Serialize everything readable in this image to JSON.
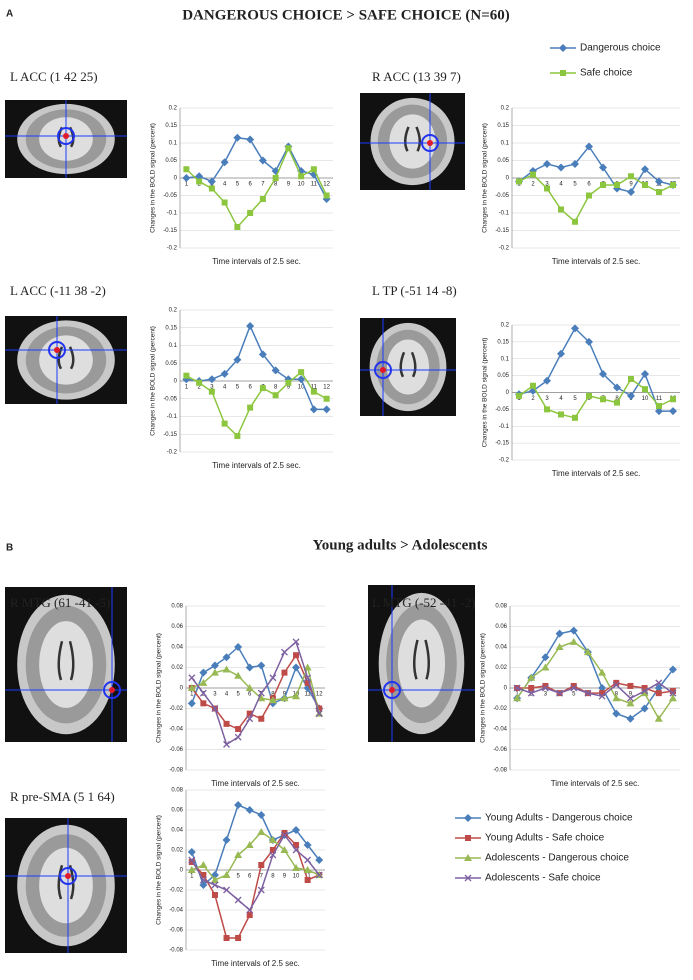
{
  "panels": [
    {
      "label": "A",
      "title": "DANGEROUS CHOICE > SAFE CHOICE (N=60)"
    },
    {
      "label": "B",
      "title": "Young adults > Adolescents"
    }
  ],
  "chart_data": [
    {
      "type": "line",
      "title": "L  ACC (1 42 25)",
      "ylabel": "Changes in the BOLD signal (percent)",
      "xlabel": "Time intervals of 2.5 sec.",
      "categories": [
        "1",
        "2",
        "3",
        "4",
        "5",
        "6",
        "7",
        "8",
        "9",
        "10",
        "11",
        "12"
      ],
      "ylim": [
        -0.2,
        0.2
      ],
      "yticks": [
        -0.2,
        -0.15,
        -0.1,
        -0.05,
        0,
        0.05,
        0.1,
        0.15,
        0.2
      ],
      "grid": true,
      "series": [
        {
          "name": "Dangerous choice",
          "color": "#4a7ebb",
          "marker": "diamond",
          "values": [
            0,
            0.005,
            -0.01,
            0.045,
            0.115,
            0.11,
            0.05,
            0.02,
            0.09,
            0.02,
            0.01,
            -0.06
          ]
        },
        {
          "name": "Safe choice",
          "color": "#8cc63f",
          "marker": "square",
          "values": [
            0.025,
            -0.01,
            -0.03,
            -0.07,
            -0.14,
            -0.1,
            -0.06,
            0,
            0.085,
            0.005,
            0.025,
            -0.05
          ]
        }
      ]
    },
    {
      "type": "line",
      "title": "R ACC (13 39 7)",
      "ylabel": "Changes in the BOLD signal (percent)",
      "xlabel": "Time intervals of 2.5 sec.",
      "categories": [
        "1",
        "2",
        "3",
        "4",
        "5",
        "6",
        "7",
        "8",
        "9",
        "10",
        "11",
        "12"
      ],
      "ylim": [
        -0.2,
        0.2
      ],
      "yticks": [
        -0.2,
        -0.15,
        -0.1,
        -0.05,
        0,
        0.05,
        0.1,
        0.15,
        0.2
      ],
      "grid": true,
      "series": [
        {
          "color": "#4a7ebb",
          "marker": "diamond",
          "values": [
            -0.01,
            0.02,
            0.04,
            0.03,
            0.04,
            0.09,
            0.03,
            -0.03,
            -0.04,
            0.025,
            -0.01,
            -0.02
          ]
        },
        {
          "color": "#8cc63f",
          "marker": "square",
          "values": [
            -0.01,
            0.01,
            -0.03,
            -0.09,
            -0.125,
            -0.05,
            -0.02,
            -0.02,
            0.005,
            -0.02,
            -0.04,
            -0.02
          ]
        }
      ]
    },
    {
      "type": "line",
      "title": "L ACC  (-11 38 -2)",
      "ylabel": "Changes in the BOLD signal (percent)",
      "xlabel": "Time intervals of 2.5 sec.",
      "categories": [
        "1",
        "2",
        "3",
        "4",
        "5",
        "6",
        "7",
        "8",
        "9",
        "10",
        "11",
        "12"
      ],
      "ylim": [
        -0.2,
        0.2
      ],
      "yticks": [
        -0.2,
        -0.15,
        -0.1,
        -0.05,
        0,
        0.05,
        0.1,
        0.15,
        0.2
      ],
      "grid": true,
      "series": [
        {
          "color": "#4a7ebb",
          "marker": "diamond",
          "values": [
            0.005,
            0,
            0.005,
            0.02,
            0.06,
            0.155,
            0.075,
            0.03,
            0.005,
            0.005,
            -0.08,
            -0.08
          ]
        },
        {
          "color": "#8cc63f",
          "marker": "square",
          "values": [
            0.015,
            -0.005,
            -0.03,
            -0.12,
            -0.155,
            -0.075,
            -0.02,
            -0.04,
            -0.005,
            0.025,
            -0.03,
            -0.05
          ]
        }
      ]
    },
    {
      "type": "line",
      "title": "L TP (-51 14 -8)",
      "ylabel": "Changes in the BOLD signal (percent)",
      "xlabel": "Time intervals of 2.5 sec.",
      "categories": [
        "1",
        "2",
        "3",
        "4",
        "5",
        "6",
        "7",
        "8",
        "9",
        "10",
        "11",
        "12"
      ],
      "ylim": [
        -0.2,
        0.2
      ],
      "yticks": [
        -0.2,
        -0.15,
        -0.1,
        -0.05,
        0,
        0.05,
        0.1,
        0.15,
        0.2
      ],
      "grid": true,
      "series": [
        {
          "color": "#4a7ebb",
          "marker": "diamond",
          "values": [
            -0.005,
            0.005,
            0.035,
            0.115,
            0.19,
            0.15,
            0.055,
            0.015,
            -0.01,
            0.055,
            -0.055,
            -0.055
          ]
        },
        {
          "color": "#8cc63f",
          "marker": "square",
          "values": [
            -0.01,
            0.02,
            -0.05,
            -0.065,
            -0.075,
            -0.01,
            -0.02,
            -0.03,
            0.04,
            0.01,
            -0.04,
            -0.02
          ]
        }
      ]
    },
    {
      "type": "line",
      "title": "R MTG (61 -41 -5)",
      "ylabel": "Changes in the BOLD signal (percent)",
      "xlabel": "Time intervals of 2.5 sec.",
      "categories": [
        "1",
        "2",
        "3",
        "4",
        "5",
        "6",
        "7",
        "8",
        "9",
        "10",
        "11",
        "12"
      ],
      "ylim": [
        -0.08,
        0.08
      ],
      "yticks": [
        -0.08,
        -0.06,
        -0.04,
        -0.02,
        0,
        0.02,
        0.04,
        0.06,
        0.08
      ],
      "grid": true,
      "series": [
        {
          "name": "Young Adults - Dangerous choice",
          "color": "#4a7ebb",
          "marker": "diamond",
          "values": [
            -0.015,
            0.015,
            0.022,
            0.03,
            0.04,
            0.02,
            0.022,
            -0.015,
            -0.01,
            0.02,
            0,
            -0.02
          ]
        },
        {
          "name": "Young Adults - Safe choice",
          "color": "#be4b48",
          "marker": "square",
          "values": [
            0,
            -0.015,
            -0.02,
            -0.035,
            -0.04,
            -0.025,
            -0.03,
            -0.01,
            0.015,
            0.032,
            0.005,
            -0.02
          ]
        },
        {
          "name": "Adolescents - Dangerous choice",
          "color": "#98b954",
          "marker": "triangle",
          "values": [
            0,
            0.005,
            0.015,
            0.018,
            0.012,
            0,
            -0.01,
            -0.012,
            -0.01,
            -0.008,
            0.02,
            -0.025
          ]
        },
        {
          "name": "Adolescents - Safe choice",
          "color": "#7d60a0",
          "marker": "cross",
          "values": [
            0.01,
            -0.005,
            -0.02,
            -0.055,
            -0.048,
            -0.03,
            -0.005,
            0.01,
            0.035,
            0.045,
            0.01,
            -0.025
          ]
        }
      ]
    },
    {
      "type": "line",
      "title": "L MTG (-52 -41 -2)",
      "ylabel": "Changes in the BOLD signal (percent)",
      "xlabel": "Time intervals of 2.5 sec.",
      "categories": [
        "1",
        "2",
        "3",
        "4",
        "5",
        "6",
        "7",
        "8",
        "9",
        "10",
        "11",
        "12"
      ],
      "ylim": [
        -0.08,
        0.08
      ],
      "yticks": [
        -0.08,
        -0.06,
        -0.04,
        -0.02,
        0,
        0.02,
        0.04,
        0.06,
        0.08
      ],
      "grid": true,
      "series": [
        {
          "color": "#4a7ebb",
          "marker": "diamond",
          "values": [
            -0.01,
            0.01,
            0.03,
            0.053,
            0.056,
            0.035,
            0,
            -0.025,
            -0.03,
            -0.02,
            0,
            0.018
          ]
        },
        {
          "color": "#be4b48",
          "marker": "square",
          "values": [
            0,
            0,
            0.002,
            -0.005,
            0.002,
            -0.005,
            -0.005,
            0.005,
            0.002,
            0,
            -0.005,
            -0.003
          ]
        },
        {
          "color": "#98b954",
          "marker": "triangle",
          "values": [
            -0.01,
            0.01,
            0.02,
            0.04,
            0.045,
            0.035,
            0.015,
            -0.01,
            -0.015,
            -0.005,
            -0.03,
            -0.01
          ]
        },
        {
          "color": "#7d60a0",
          "marker": "cross",
          "values": [
            0,
            -0.005,
            0,
            -0.005,
            0,
            -0.005,
            -0.008,
            0.003,
            -0.01,
            -0.003,
            0.005,
            -0.005
          ]
        }
      ]
    },
    {
      "type": "line",
      "title": "R pre-SMA (5 1 64)",
      "ylabel": "Changes in the BOLD signal (percent)",
      "xlabel": "Time intervals of 2.5 sec.",
      "categories": [
        "1",
        "2",
        "3",
        "4",
        "5",
        "6",
        "7",
        "8",
        "9",
        "10",
        "11",
        "12"
      ],
      "ylim": [
        -0.08,
        0.08
      ],
      "yticks": [
        -0.08,
        -0.06,
        -0.04,
        -0.02,
        0,
        0.02,
        0.04,
        0.06,
        0.08
      ],
      "grid": true,
      "series": [
        {
          "color": "#4a7ebb",
          "marker": "diamond",
          "values": [
            0.018,
            -0.015,
            -0.005,
            0.03,
            0.065,
            0.06,
            0.055,
            0.03,
            0.035,
            0.04,
            0.025,
            0.01
          ]
        },
        {
          "color": "#be4b48",
          "marker": "square",
          "values": [
            0.008,
            -0.005,
            -0.025,
            -0.068,
            -0.068,
            -0.045,
            0.005,
            0.02,
            0.037,
            0.025,
            -0.01,
            -0.005
          ]
        },
        {
          "color": "#98b954",
          "marker": "triangle",
          "values": [
            0,
            0.005,
            -0.01,
            -0.005,
            0.015,
            0.025,
            0.038,
            0.03,
            0.02,
            0.002,
            0,
            -0.005
          ]
        },
        {
          "color": "#7d60a0",
          "marker": "cross",
          "values": [
            0.01,
            -0.01,
            -0.015,
            -0.02,
            -0.03,
            -0.04,
            -0.02,
            0.015,
            0.035,
            0.02,
            0.01,
            -0.005
          ]
        }
      ]
    }
  ]
}
